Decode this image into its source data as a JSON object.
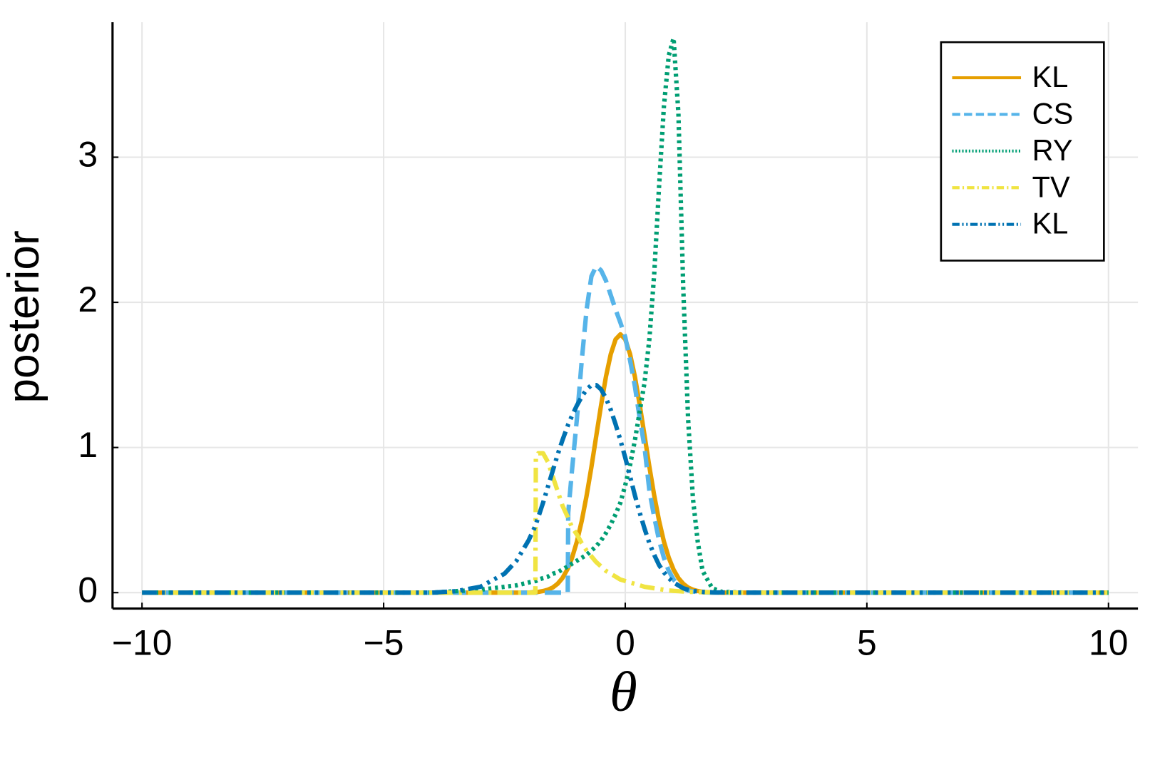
{
  "chart_data": {
    "type": "line",
    "xlabel": "θ",
    "ylabel": "posterior",
    "x": [
      -10,
      -6,
      -4,
      -3.5,
      -3,
      -2.5,
      -2.25,
      -2,
      -1.86,
      -1.85,
      -1.8,
      -1.7,
      -1.6,
      -1.5,
      -1.4,
      -1.3,
      -1.19,
      -1.18,
      -1.1,
      -1,
      -0.9,
      -0.8,
      -0.7,
      -0.6,
      -0.5,
      -0.4,
      -0.3,
      -0.2,
      -0.1,
      0,
      0.1,
      0.2,
      0.3,
      0.4,
      0.5,
      0.6,
      0.7,
      0.8,
      0.9,
      1,
      1.1,
      1.2,
      1.3,
      1.4,
      1.5,
      1.6,
      1.8,
      2,
      2.5,
      3,
      4,
      6,
      10
    ],
    "series": [
      {
        "name": "KL",
        "color": "#e69f00",
        "style": "solid",
        "values": [
          0,
          0,
          0,
          0,
          0,
          0,
          0,
          0,
          0.004,
          0.004,
          0.005,
          0.011,
          0.02,
          0.035,
          0.061,
          0.1,
          0.165,
          0.172,
          0.241,
          0.352,
          0.495,
          0.668,
          0.866,
          1.08,
          1.292,
          1.487,
          1.643,
          1.745,
          1.78,
          1.745,
          1.643,
          1.487,
          1.292,
          1.08,
          0.866,
          0.668,
          0.495,
          0.352,
          0.241,
          0.158,
          0.1,
          0.061,
          0.035,
          0.02,
          0.011,
          0.005,
          0.001,
          0,
          0,
          0,
          0,
          0,
          0
        ]
      },
      {
        "name": "CS",
        "color": "#56b4e9",
        "style": "dash",
        "values": [
          0,
          0,
          0,
          0,
          0,
          0,
          0,
          0,
          0,
          0,
          0,
          0,
          0,
          0,
          0,
          0,
          0,
          0.55,
          0.85,
          1.2,
          1.6,
          1.95,
          2.18,
          2.25,
          2.22,
          2.15,
          2.05,
          1.95,
          1.86,
          1.76,
          1.6,
          1.42,
          1.2,
          1.0,
          0.7,
          0.52,
          0.36,
          0.24,
          0.15,
          0.09,
          0.05,
          0.03,
          0.015,
          0.008,
          0.004,
          0.002,
          0,
          0,
          0,
          0,
          0,
          0,
          0
        ]
      },
      {
        "name": "RY",
        "color": "#009e73",
        "style": "dot",
        "values": [
          0,
          0,
          0,
          0.01,
          0.02,
          0.04,
          0.05,
          0.07,
          0.08,
          0.08,
          0.09,
          0.1,
          0.11,
          0.13,
          0.14,
          0.16,
          0.18,
          0.18,
          0.2,
          0.22,
          0.24,
          0.26,
          0.29,
          0.32,
          0.36,
          0.41,
          0.47,
          0.54,
          0.62,
          0.74,
          0.88,
          1.05,
          1.25,
          1.45,
          1.75,
          2.2,
          2.8,
          3.35,
          3.7,
          3.82,
          3.3,
          2.1,
          1.2,
          0.65,
          0.35,
          0.15,
          0.03,
          0.005,
          0,
          0,
          0,
          0,
          0
        ]
      },
      {
        "name": "TV",
        "color": "#f0e442",
        "style": "dashdot",
        "values": [
          0,
          0,
          0,
          0,
          0,
          0,
          0,
          0,
          0,
          0.93,
          0.96,
          0.96,
          0.9,
          0.8,
          0.7,
          0.6,
          0.52,
          0.51,
          0.45,
          0.4,
          0.34,
          0.29,
          0.25,
          0.21,
          0.18,
          0.15,
          0.13,
          0.11,
          0.09,
          0.08,
          0.07,
          0.06,
          0.05,
          0.04,
          0.035,
          0.03,
          0.025,
          0.02,
          0.015,
          0.012,
          0.01,
          0.008,
          0.006,
          0.005,
          0.004,
          0.003,
          0.002,
          0.001,
          0,
          0,
          0,
          0,
          0
        ]
      },
      {
        "name": "KL",
        "color": "#0072b2",
        "style": "dashdotdot",
        "values": [
          0,
          0,
          0,
          0.01,
          0.04,
          0.13,
          0.22,
          0.36,
          0.46,
          0.47,
          0.52,
          0.62,
          0.73,
          0.84,
          0.95,
          1.05,
          1.15,
          1.16,
          1.22,
          1.29,
          1.35,
          1.4,
          1.43,
          1.43,
          1.4,
          1.34,
          1.26,
          1.16,
          1.05,
          0.93,
          0.8,
          0.67,
          0.55,
          0.44,
          0.34,
          0.26,
          0.19,
          0.14,
          0.1,
          0.07,
          0.05,
          0.03,
          0.02,
          0.012,
          0.008,
          0.005,
          0.002,
          0.001,
          0,
          0,
          0,
          0,
          0
        ]
      }
    ],
    "xlim": [
      -10.61,
      10.61
    ],
    "ylim": [
      -0.11,
      3.93
    ],
    "xticks": [
      {
        "value": -10,
        "label": "−10"
      },
      {
        "value": -5,
        "label": "−5"
      },
      0,
      5,
      10
    ],
    "yticks": [
      0,
      1,
      2,
      3
    ],
    "grid": true,
    "legend": "top right"
  }
}
